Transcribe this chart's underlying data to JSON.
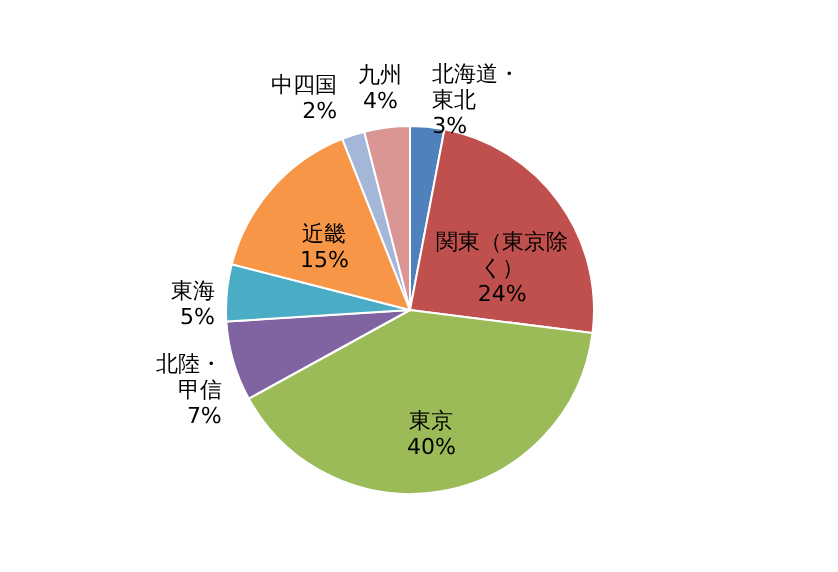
{
  "chart_data": {
    "type": "pie",
    "categories": [
      "北海道・東北",
      "関東（東京除く）",
      "東京",
      "北陸・甲信",
      "東海",
      "近畿",
      "中四国",
      "九州"
    ],
    "values": [
      3,
      24,
      40,
      7,
      5,
      15,
      2,
      4
    ],
    "value_labels": [
      "3%",
      "24%",
      "40%",
      "7%",
      "5%",
      "15%",
      "2%",
      "4%"
    ],
    "colors": [
      "#4f81bd",
      "#c0504d",
      "#9bbb59",
      "#8064a2",
      "#4bacc6",
      "#f79646",
      "#a5b7d9",
      "#d99694"
    ],
    "legend": false
  }
}
